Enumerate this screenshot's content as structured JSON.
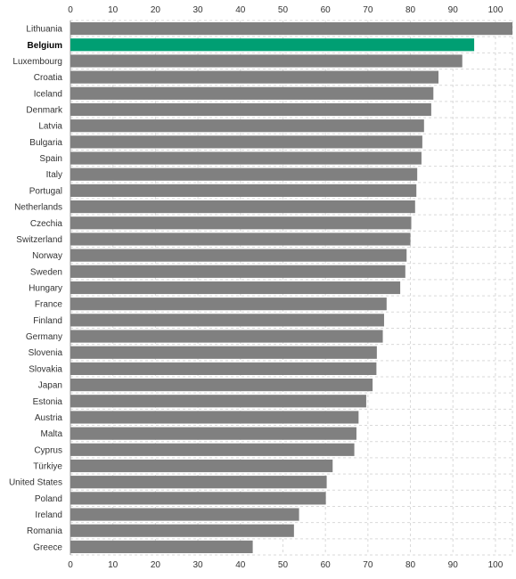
{
  "chart_data": {
    "type": "bar",
    "orientation": "horizontal",
    "title": "",
    "xlabel": "",
    "ylabel": "",
    "xlim": [
      0,
      104
    ],
    "xticks": [
      "0",
      "10",
      "20",
      "30",
      "40",
      "50",
      "60",
      "70",
      "80",
      "90",
      "100"
    ],
    "grid": true,
    "highlight": "Belgium",
    "colors": {
      "bar": "#808080",
      "highlight": "#009f73",
      "grid": "#d9d9d9"
    },
    "categories": [
      "Lithuania",
      "Belgium",
      "Luxembourg",
      "Croatia",
      "Iceland",
      "Denmark",
      "Latvia",
      "Bulgaria",
      "Spain",
      "Italy",
      "Portugal",
      "Netherlands",
      "Czechia",
      "Switzerland",
      "Norway",
      "Sweden",
      "Hungary",
      "France",
      "Finland",
      "Germany",
      "Slovenia",
      "Slovakia",
      "Japan",
      "Estonia",
      "Austria",
      "Malta",
      "Cyprus",
      "Türkiye",
      "United States",
      "Poland",
      "Ireland",
      "Romania",
      "Greece"
    ],
    "values": [
      104,
      95,
      92.2,
      86.6,
      85.4,
      84.9,
      83.2,
      82.8,
      82.6,
      81.6,
      81.4,
      81.1,
      80.2,
      80.0,
      79.1,
      78.8,
      77.6,
      74.4,
      73.8,
      73.5,
      72.1,
      72.0,
      71.1,
      69.6,
      67.8,
      67.3,
      66.8,
      61.7,
      60.3,
      60.1,
      53.8,
      52.6,
      42.9
    ]
  }
}
